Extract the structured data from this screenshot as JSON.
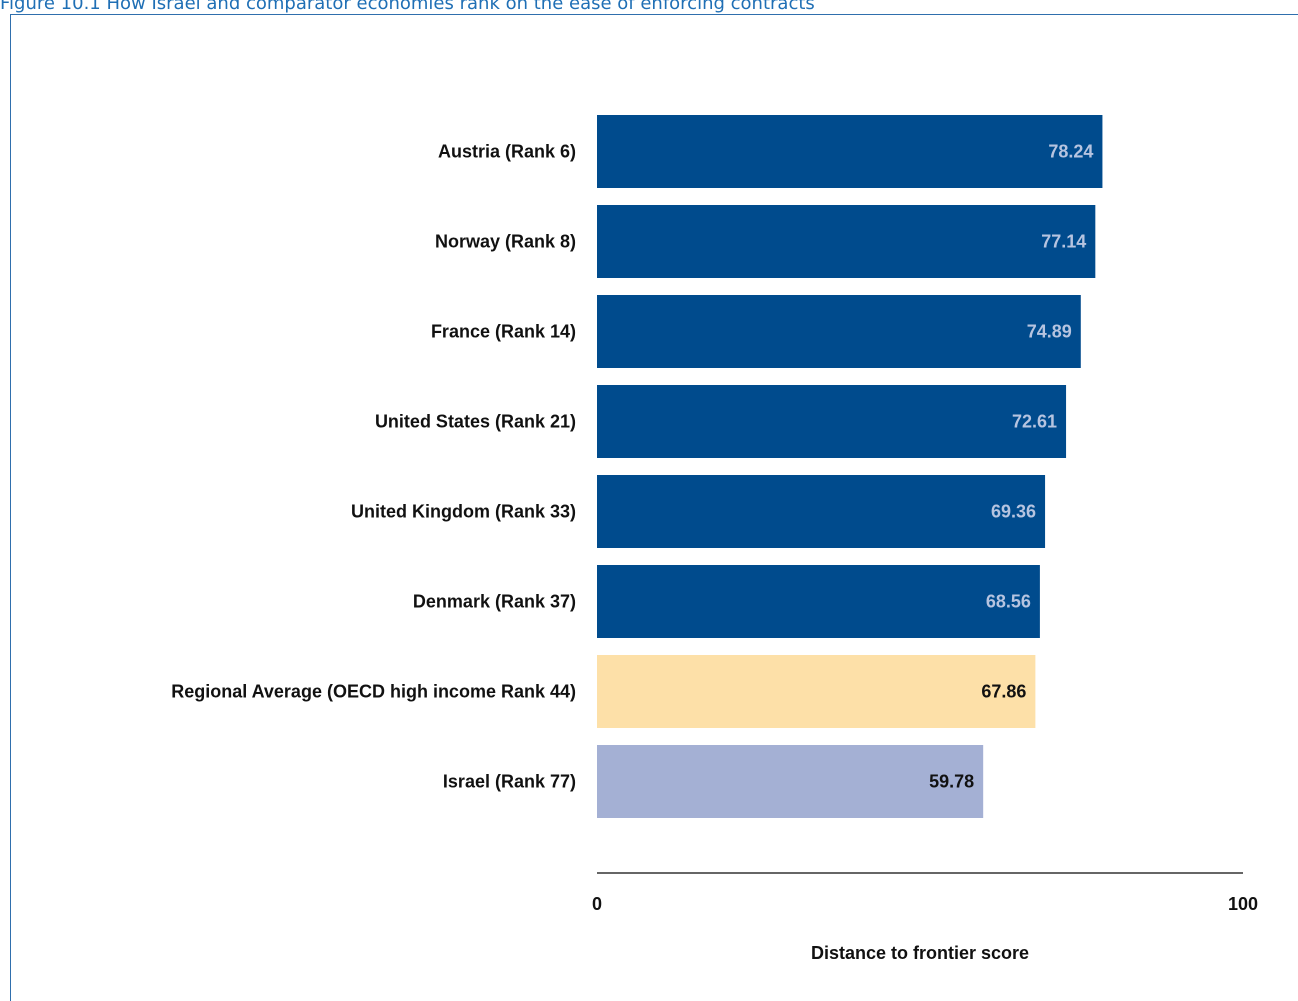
{
  "figure_title": "Figure 10.1 How Israel and comparator economies rank on the ease of enforcing contracts",
  "colors": {
    "highlight_bar": "#004b8d",
    "regional_bar": "#fde0a8",
    "subject_bar": "#a4b0d4",
    "highlight_label": "#b6c4e0",
    "dark_label": "#111111",
    "axis": "#333333"
  },
  "chart_data": {
    "type": "bar",
    "orientation": "horizontal",
    "categories": [
      "Austria (Rank 6)",
      "Norway (Rank 8)",
      "France (Rank 14)",
      "United States (Rank 21)",
      "United Kingdom (Rank 33)",
      "Denmark (Rank 37)",
      "Regional Average (OECD high income Rank 44)",
      "Israel (Rank 77)"
    ],
    "values": [
      78.24,
      77.14,
      74.89,
      72.61,
      69.36,
      68.56,
      67.86,
      59.78
    ],
    "value_labels": [
      "78.24",
      "77.14",
      "74.89",
      "72.61",
      "69.36",
      "68.56",
      "67.86",
      "59.78"
    ],
    "bar_kinds": [
      "comparator",
      "comparator",
      "comparator",
      "comparator",
      "comparator",
      "comparator",
      "regional",
      "subject"
    ],
    "xlim": [
      0,
      100
    ],
    "x_ticks": [
      "0",
      "100"
    ],
    "xlabel": "Distance to frontier score",
    "ylabel": "",
    "grid": false,
    "legend": "none"
  }
}
